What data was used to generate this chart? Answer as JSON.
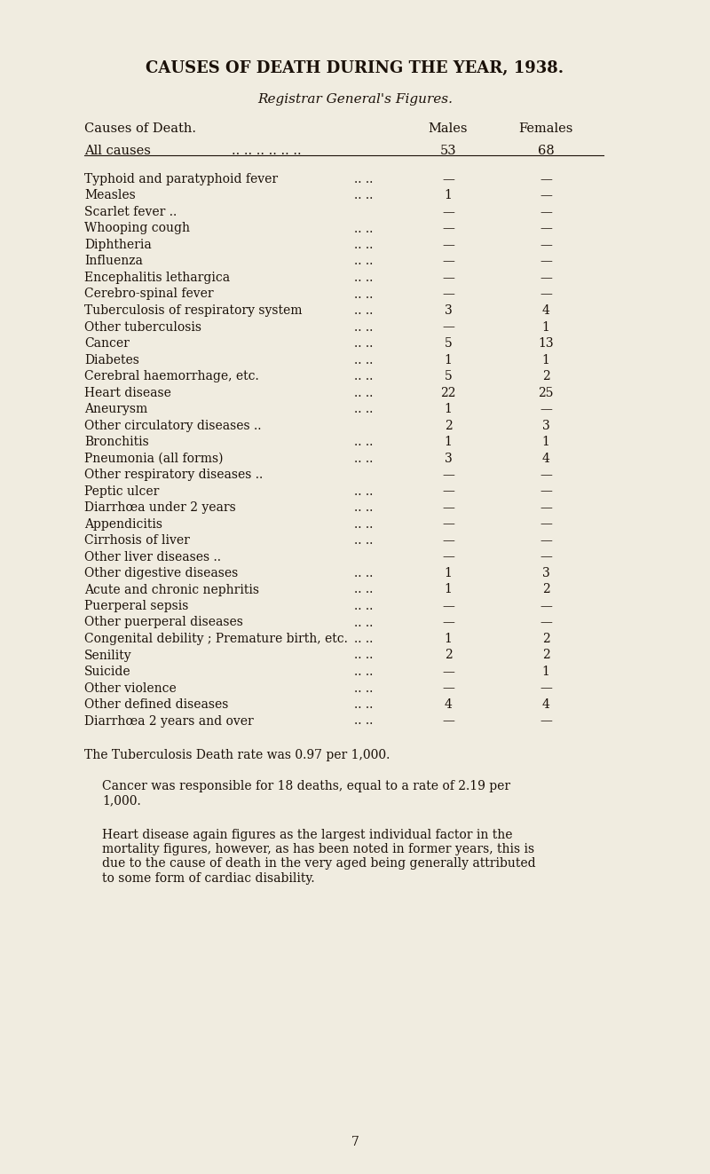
{
  "title": "CAUSES OF DEATH DURING THE YEAR, 1938.",
  "subtitle": "Registrar General's Figures.",
  "col_header_cause": "Causes of Death.",
  "col_header_males": "Males",
  "col_header_females": "Females",
  "all_causes_label": "All causes",
  "all_causes_dots": ".. .. .. .. .. ..",
  "all_causes_males": "53",
  "all_causes_females": "68",
  "rows": [
    [
      "Typhoid and paratyphoid fever",
      "..",
      "..",
      "—",
      "—"
    ],
    [
      "Measles",
      "..",
      "..",
      "1",
      "—"
    ],
    [
      "Scarlet fever ..",
      "..",
      "..",
      "—",
      "—"
    ],
    [
      "Whooping cough",
      "..",
      "..",
      "—",
      "—"
    ],
    [
      "Diphtheria",
      "..",
      "..",
      "—",
      "—"
    ],
    [
      "Influenza",
      "..",
      "..",
      "—",
      "—"
    ],
    [
      "Encephalitis lethargica",
      "..",
      "..",
      "—",
      "—"
    ],
    [
      "Cerebro-spinal fever",
      "..",
      "..",
      "—",
      "—"
    ],
    [
      "Tuberculosis of respiratory system",
      "..",
      "..",
      "3",
      "4"
    ],
    [
      "Other tuberculosis",
      "..",
      "..",
      "—",
      "1"
    ],
    [
      "Cancer",
      "..",
      "..",
      "5",
      "13"
    ],
    [
      "Diabetes",
      "..",
      "..",
      "1",
      "1"
    ],
    [
      "Cerebral haemorrhage, etc.",
      "..",
      "..",
      "5",
      "2"
    ],
    [
      "Heart disease",
      "..",
      "..",
      "22",
      "25"
    ],
    [
      "Aneurysm",
      "..",
      "..",
      "1",
      "—"
    ],
    [
      "Other circulatory diseases ..",
      "..",
      "..",
      "2",
      "3"
    ],
    [
      "Bronchitis",
      "..",
      "..",
      "1",
      "1"
    ],
    [
      "Pneumonia (all forms)",
      "..",
      "..",
      "3",
      "4"
    ],
    [
      "Other respiratory diseases ..",
      "..",
      "..",
      "—",
      "—"
    ],
    [
      "Peptic ulcer",
      "..",
      "..",
      "—",
      "—"
    ],
    [
      "Diarrhœa under 2 years",
      "..",
      "..",
      "—",
      "—"
    ],
    [
      "Appendicitis",
      "..",
      "..",
      "—",
      "—"
    ],
    [
      "Cirrhosis of liver",
      "..",
      "..",
      "—",
      "—"
    ],
    [
      "Other liver diseases ..",
      "..",
      "..",
      "—",
      "—"
    ],
    [
      "Other digestive diseases",
      "..",
      "..",
      "1",
      "3"
    ],
    [
      "Acute and chronic nephritis",
      "..",
      "..",
      "1",
      "2"
    ],
    [
      "Puerperal sepsis",
      "..",
      "..",
      "—",
      "—"
    ],
    [
      "Other puerperal diseases",
      "..",
      "..",
      "—",
      "—"
    ],
    [
      "Congenital debility ; Premature birth, etc.",
      "..",
      "..",
      "1",
      "2"
    ],
    [
      "Senility",
      "..",
      "..",
      "2",
      "2"
    ],
    [
      "Suicide",
      "..",
      "..",
      "—",
      "1"
    ],
    [
      "Other violence",
      "..",
      "..",
      "—",
      "—"
    ],
    [
      "Other defined diseases",
      "..",
      "..",
      "4",
      "4"
    ],
    [
      "Diarrhœa 2 years and over",
      "..",
      "..",
      "—",
      "—"
    ]
  ],
  "footer_lines": [
    "The Tuberculosis Death rate was 0.97 per 1,000.",
    "Cancer was responsible for 18 deaths, equal to a rate of 2.19 per\n1,000.",
    "Heart disease again figures as the largest individual factor in the\nmortality figures, however, as has been noted in former years, this is\ndue to the cause of death in the very aged being generally attributed\nto some form of cardiac disability."
  ],
  "page_number": "7",
  "bg_color": "#f0ece0",
  "text_color": "#1a1008"
}
